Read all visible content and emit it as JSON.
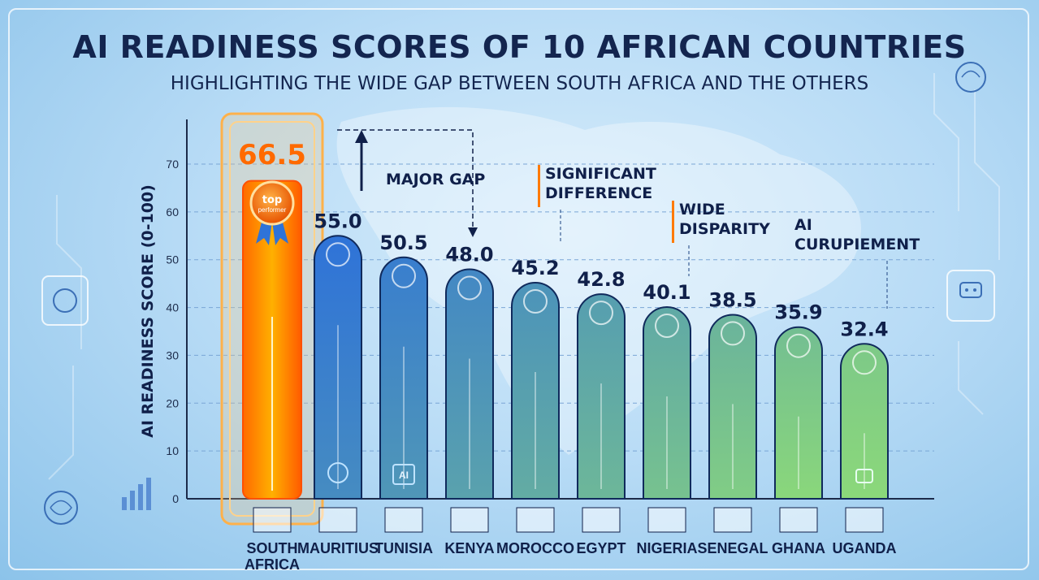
{
  "title": "AI READINESS SCORES OF 10 AFRICAN COUNTRIES",
  "subtitle": "HIGHLIGHTING THE WIDE GAP BETWEEN SOUTH AFRICA AND THE OTHERS",
  "chart_data": {
    "type": "bar",
    "title": "AI READINESS SCORES OF 10 AFRICAN COUNTRIES",
    "subtitle": "HIGHLIGHTING THE WIDE GAP BETWEEN SOUTH AFRICA AND THE OTHERS",
    "ylabel": "AI READINESS SCORE (0-100)",
    "xlabel": "",
    "ylim": [
      0,
      70
    ],
    "yticks": [
      0,
      10,
      20,
      30,
      40,
      50,
      60,
      70
    ],
    "grid": true,
    "categories": [
      [
        "SOUTH",
        "AFRICA"
      ],
      [
        "MAURITIUS"
      ],
      [
        "TUNISIA"
      ],
      [
        "KENYA"
      ],
      [
        "MOROCCO"
      ],
      [
        "EGYPT"
      ],
      [
        "NIGERIA"
      ],
      [
        "SENEGAL"
      ],
      [
        "GHANA"
      ],
      [
        "UGANDA"
      ]
    ],
    "values": [
      66.5,
      55.0,
      50.5,
      48.0,
      45.2,
      42.8,
      40.1,
      38.5,
      35.9,
      32.4
    ],
    "value_labels": [
      "66.5",
      "55.0",
      "50.5",
      "48.0",
      "45.2",
      "42.8",
      "40.1",
      "38.5",
      "35.9",
      "32.4"
    ],
    "highlight_index": 0,
    "badge_lines": [
      "top",
      "performer"
    ],
    "bar_icon_label": "AI",
    "annotations": [
      {
        "lines": [
          "MAJOR GAP"
        ],
        "category_index": 3
      },
      {
        "lines": [
          "SIGNIFICANT",
          "DIFFERENCE"
        ],
        "category_index": 4
      },
      {
        "lines": [
          "WIDE",
          "DISPARITY"
        ],
        "category_index": 6
      },
      {
        "lines": [
          "AI",
          "CURUPIEMENT"
        ],
        "category_index": 8
      }
    ],
    "colors": {
      "highlight": "#ff7a00",
      "bar_top": "#2f73d8",
      "bar_bottom": "#8bd87a",
      "accent": "#ff7a00",
      "text": "#10204a"
    }
  }
}
